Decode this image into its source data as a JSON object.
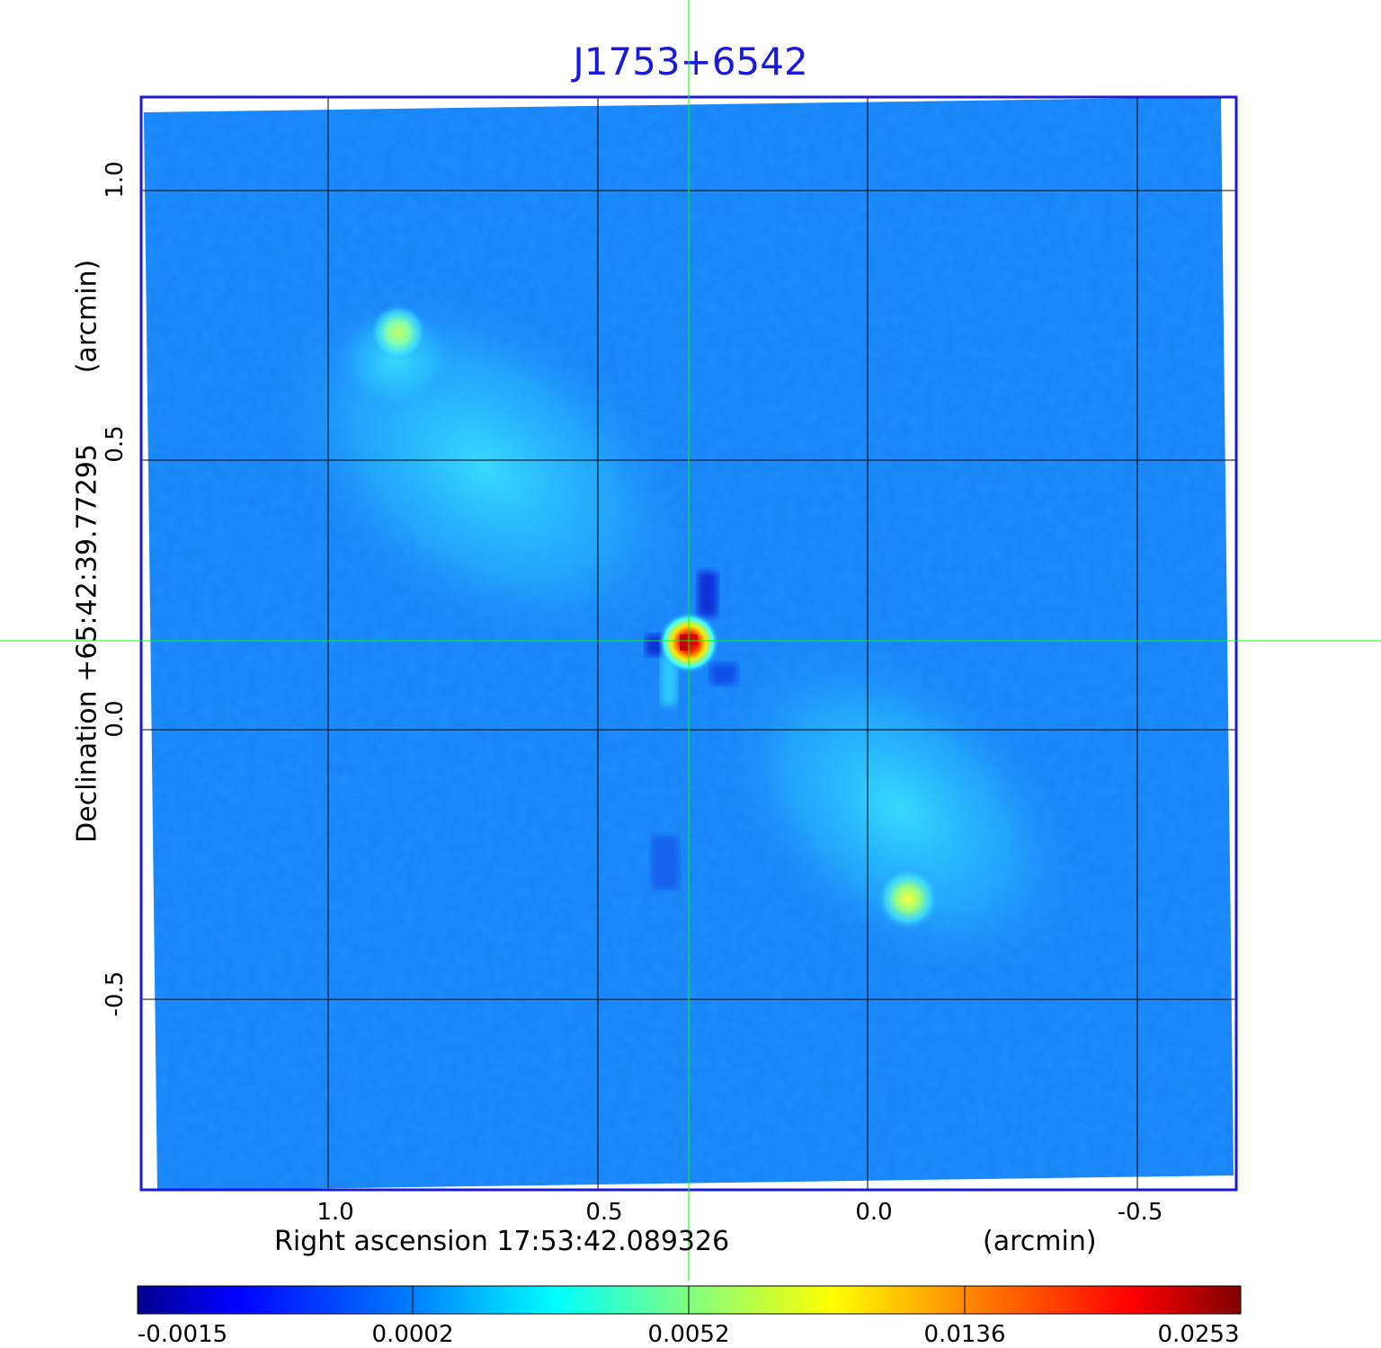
{
  "title": "J1753+6542",
  "axes": {
    "x_label": "Right ascension  17:53:42.089326",
    "x_unit": "(arcmin)",
    "y_label": "Declination  +65:42:39.77295",
    "y_unit": "(arcmin)",
    "x_ticks": [
      "1.0",
      "0.5",
      "0.0",
      "-0.5"
    ],
    "y_ticks": [
      "1.0",
      "0.5",
      "0.0",
      "-0.5"
    ]
  },
  "colorbar": {
    "ticks": [
      "-0.0015",
      "0.0002",
      "0.0052",
      "0.0136",
      "0.0253"
    ],
    "colormap": [
      "#00008f",
      "#0000ff",
      "#0080ff",
      "#00ffff",
      "#80ff80",
      "#ffff00",
      "#ff8000",
      "#ff0000",
      "#800000"
    ]
  },
  "colors": {
    "frame": "#1a1adc",
    "crosshair": "#00ff00",
    "grid": "#000000",
    "background_emission": "#1e8eff"
  },
  "image_description_values": {
    "crosshair_center_arcmin": [
      0.33,
      0.16
    ]
  }
}
